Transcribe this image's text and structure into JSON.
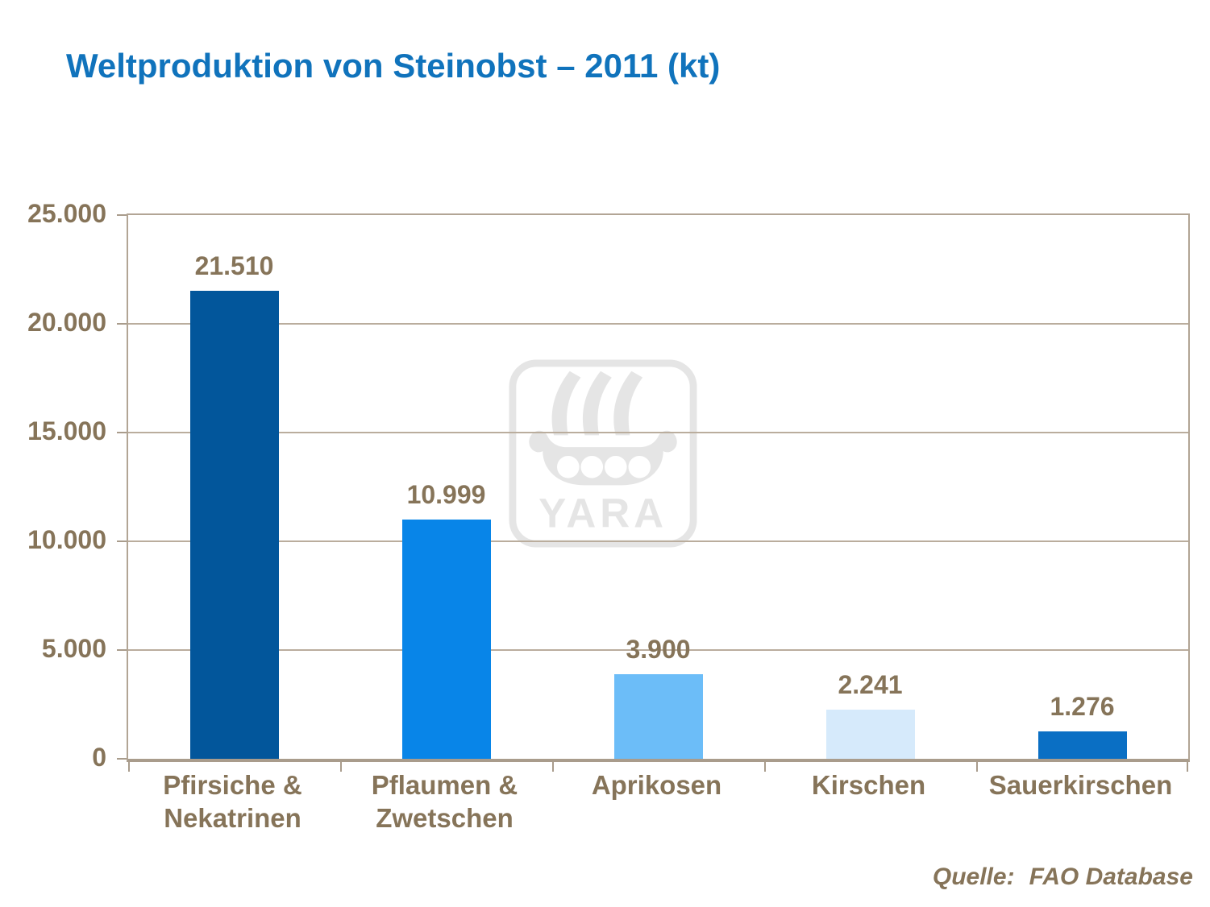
{
  "page": {
    "background": "#FFFFFF"
  },
  "title": {
    "text": "Weltproduktion von Steinobst – 2011 (kt)",
    "color": "#1073BC"
  },
  "source": {
    "label": "Quelle:",
    "value": "FAO Database",
    "color": "#867459"
  },
  "watermark": {
    "name": "yara-viking-ship-logo",
    "wordmark": "YARA",
    "color": "#E5E5E5"
  },
  "chart_data": {
    "type": "bar",
    "title": "Weltproduktion von Steinobst – 2011 (kt)",
    "categories": [
      "Pfirsiche & Nekatrinen",
      "Pflaumen & Zwetschen",
      "Aprikosen",
      "Kirschen",
      "Sauerkirschen"
    ],
    "category_lines": [
      [
        "Pfirsiche &",
        "Nekatrinen"
      ],
      [
        "Pflaumen &",
        "Zwetschen"
      ],
      [
        "Aprikosen"
      ],
      [
        "Kirschen"
      ],
      [
        "Sauerkirschen"
      ]
    ],
    "values": [
      21510,
      10999,
      3900,
      2241,
      1276
    ],
    "value_labels": [
      "21.510",
      "10.999",
      "3.900",
      "2.241",
      "1.276"
    ],
    "bar_colors": [
      "#02569B",
      "#0885E8",
      "#6CBDF8",
      "#D6EAFB",
      "#0A6FC4"
    ],
    "ylim": [
      0,
      25000
    ],
    "y_ticks": [
      {
        "value": 25000,
        "label": "25.000"
      },
      {
        "value": 20000,
        "label": "20.000"
      },
      {
        "value": 15000,
        "label": "15.000"
      },
      {
        "value": 10000,
        "label": "10.000"
      },
      {
        "value": 5000,
        "label": "5.000"
      },
      {
        "value": 0,
        "label": "0"
      }
    ],
    "grid": true,
    "legend": false,
    "xlabel": "",
    "ylabel": "",
    "colors": {
      "axis_text": "#867459",
      "grid_line": "#BAAD9D",
      "frame": "#B2A595",
      "baseline": "#A99C8C"
    }
  }
}
